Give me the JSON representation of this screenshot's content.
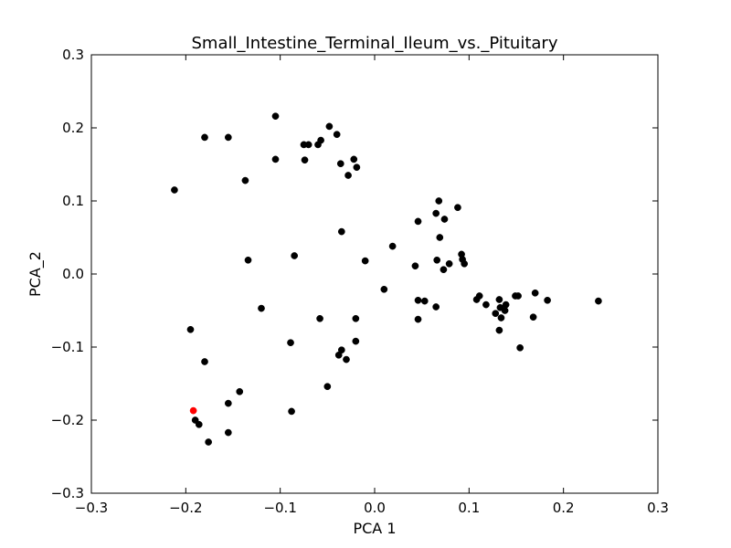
{
  "chart_data": {
    "type": "scatter",
    "title": "Small_Intestine_Terminal_Ileum_vs._Pituitary",
    "xlabel": "PCA 1",
    "ylabel": "PCA_2",
    "xlim": [
      -0.3,
      0.3
    ],
    "ylim": [
      -0.3,
      0.3
    ],
    "xticks": [
      -0.3,
      -0.2,
      -0.1,
      0.0,
      0.1,
      0.2,
      0.3
    ],
    "xtick_labels": [
      "−0.3",
      "−0.2",
      "−0.1",
      "0.0",
      "0.1",
      "0.2",
      "0.3"
    ],
    "yticks": [
      -0.3,
      -0.2,
      -0.1,
      0.0,
      0.1,
      0.2,
      0.3
    ],
    "ytick_labels": [
      "−0.3",
      "−0.2",
      "−0.1",
      "0.0",
      "0.1",
      "0.2",
      "0.3"
    ],
    "grid": false,
    "legend": "none",
    "colors": {
      "default": "#000000",
      "highlight": "#ff0000"
    },
    "series": [
      {
        "color": "#000000",
        "points": [
          [
            -0.212,
            0.115
          ],
          [
            -0.18,
            0.187
          ],
          [
            -0.155,
            0.187
          ],
          [
            -0.137,
            0.128
          ],
          [
            -0.105,
            0.216
          ],
          [
            -0.105,
            0.157
          ],
          [
            -0.075,
            0.177
          ],
          [
            -0.07,
            0.177
          ],
          [
            -0.06,
            0.177
          ],
          [
            -0.057,
            0.183
          ],
          [
            -0.048,
            0.202
          ],
          [
            -0.04,
            0.191
          ],
          [
            -0.074,
            0.156
          ],
          [
            -0.036,
            0.151
          ],
          [
            -0.022,
            0.157
          ],
          [
            -0.019,
            0.146
          ],
          [
            -0.028,
            0.135
          ],
          [
            -0.035,
            0.058
          ],
          [
            -0.085,
            0.025
          ],
          [
            -0.134,
            0.019
          ],
          [
            -0.01,
            0.018
          ],
          [
            0.019,
            0.038
          ],
          [
            0.01,
            -0.021
          ],
          [
            -0.12,
            -0.047
          ],
          [
            -0.058,
            -0.061
          ],
          [
            -0.02,
            -0.061
          ],
          [
            -0.195,
            -0.076
          ],
          [
            -0.089,
            -0.094
          ],
          [
            -0.02,
            -0.092
          ],
          [
            -0.035,
            -0.104
          ],
          [
            -0.038,
            -0.111
          ],
          [
            -0.03,
            -0.117
          ],
          [
            -0.18,
            -0.12
          ],
          [
            -0.05,
            -0.154
          ],
          [
            -0.143,
            -0.161
          ],
          [
            -0.155,
            -0.177
          ],
          [
            -0.088,
            -0.188
          ],
          [
            -0.19,
            -0.2
          ],
          [
            -0.186,
            -0.206
          ],
          [
            -0.155,
            -0.217
          ],
          [
            -0.176,
            -0.23
          ],
          [
            0.068,
            0.1
          ],
          [
            0.088,
            0.091
          ],
          [
            0.065,
            0.083
          ],
          [
            0.074,
            0.075
          ],
          [
            0.046,
            0.072
          ],
          [
            0.069,
            0.05
          ],
          [
            0.092,
            0.027
          ],
          [
            0.093,
            0.02
          ],
          [
            0.066,
            0.019
          ],
          [
            0.079,
            0.014
          ],
          [
            0.095,
            0.014
          ],
          [
            0.043,
            0.011
          ],
          [
            0.073,
            0.006
          ],
          [
            0.046,
            -0.036
          ],
          [
            0.053,
            -0.037
          ],
          [
            0.065,
            -0.045
          ],
          [
            0.046,
            -0.062
          ],
          [
            0.108,
            -0.035
          ],
          [
            0.111,
            -0.03
          ],
          [
            0.118,
            -0.042
          ],
          [
            0.132,
            -0.035
          ],
          [
            0.133,
            -0.046
          ],
          [
            0.139,
            -0.042
          ],
          [
            0.138,
            -0.05
          ],
          [
            0.128,
            -0.054
          ],
          [
            0.134,
            -0.06
          ],
          [
            0.132,
            -0.077
          ],
          [
            0.149,
            -0.03
          ],
          [
            0.152,
            -0.03
          ],
          [
            0.17,
            -0.026
          ],
          [
            0.183,
            -0.036
          ],
          [
            0.168,
            -0.059
          ],
          [
            0.154,
            -0.101
          ],
          [
            0.237,
            -0.037
          ]
        ]
      },
      {
        "color": "#ff0000",
        "points": [
          [
            -0.192,
            -0.187
          ]
        ]
      }
    ]
  }
}
